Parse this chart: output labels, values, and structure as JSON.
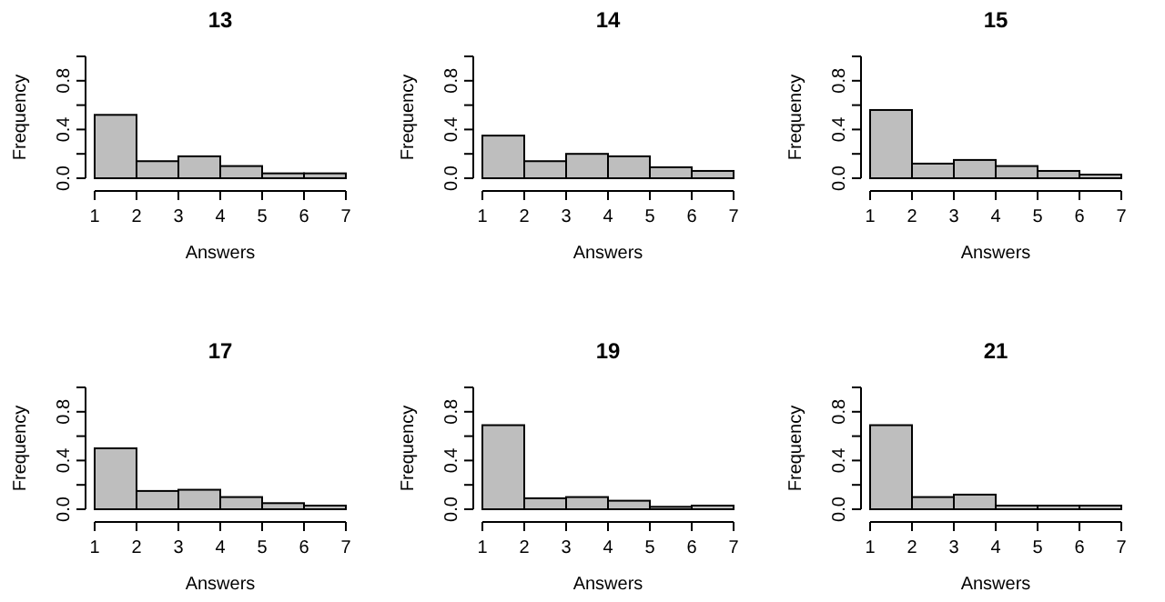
{
  "chart_data": [
    {
      "type": "histogram",
      "title": "13",
      "xlabel": "Answers",
      "ylabel": "Frequency",
      "bins": [
        1,
        2,
        3,
        4,
        5,
        6,
        7
      ],
      "values": [
        0.52,
        0.14,
        0.18,
        0.1,
        0.04,
        0.04
      ],
      "color": "#bebebe",
      "xlim": [
        1,
        7
      ],
      "xticks": [
        1,
        2,
        3,
        4,
        5,
        6,
        7
      ],
      "ylim": [
        0,
        1
      ],
      "yticks": [
        {
          "value": 0,
          "label": "0.0"
        },
        {
          "value": 0.2,
          "label": null
        },
        {
          "value": 0.4,
          "label": "0.4"
        },
        {
          "value": 0.6,
          "label": null
        },
        {
          "value": 0.8,
          "label": "0.8"
        },
        {
          "value": 1,
          "label": null
        }
      ]
    },
    {
      "type": "histogram",
      "title": "14",
      "xlabel": "Answers",
      "ylabel": "Frequency",
      "bins": [
        1,
        2,
        3,
        4,
        5,
        6,
        7
      ],
      "values": [
        0.35,
        0.14,
        0.2,
        0.18,
        0.09,
        0.06
      ],
      "color": "#bebebe",
      "xlim": [
        1,
        7
      ],
      "xticks": [
        1,
        2,
        3,
        4,
        5,
        6,
        7
      ],
      "ylim": [
        0,
        1
      ],
      "yticks": [
        {
          "value": 0,
          "label": "0.0"
        },
        {
          "value": 0.2,
          "label": null
        },
        {
          "value": 0.4,
          "label": "0.4"
        },
        {
          "value": 0.6,
          "label": null
        },
        {
          "value": 0.8,
          "label": "0.8"
        },
        {
          "value": 1,
          "label": null
        }
      ]
    },
    {
      "type": "histogram",
      "title": "15",
      "xlabel": "Answers",
      "ylabel": "Frequency",
      "bins": [
        1,
        2,
        3,
        4,
        5,
        6,
        7
      ],
      "values": [
        0.56,
        0.12,
        0.15,
        0.1,
        0.06,
        0.03
      ],
      "color": "#bebebe",
      "xlim": [
        1,
        7
      ],
      "xticks": [
        1,
        2,
        3,
        4,
        5,
        6,
        7
      ],
      "ylim": [
        0,
        1
      ],
      "yticks": [
        {
          "value": 0,
          "label": "0.0"
        },
        {
          "value": 0.2,
          "label": null
        },
        {
          "value": 0.4,
          "label": "0.4"
        },
        {
          "value": 0.6,
          "label": null
        },
        {
          "value": 0.8,
          "label": "0.8"
        },
        {
          "value": 1,
          "label": null
        }
      ]
    },
    {
      "type": "histogram",
      "title": "17",
      "xlabel": "Answers",
      "ylabel": "Frequency",
      "bins": [
        1,
        2,
        3,
        4,
        5,
        6,
        7
      ],
      "values": [
        0.5,
        0.15,
        0.16,
        0.1,
        0.05,
        0.03
      ],
      "color": "#bebebe",
      "xlim": [
        1,
        7
      ],
      "xticks": [
        1,
        2,
        3,
        4,
        5,
        6,
        7
      ],
      "ylim": [
        0,
        1
      ],
      "yticks": [
        {
          "value": 0,
          "label": "0.0"
        },
        {
          "value": 0.2,
          "label": null
        },
        {
          "value": 0.4,
          "label": "0.4"
        },
        {
          "value": 0.6,
          "label": null
        },
        {
          "value": 0.8,
          "label": "0.8"
        },
        {
          "value": 1,
          "label": null
        }
      ]
    },
    {
      "type": "histogram",
      "title": "19",
      "xlabel": "Answers",
      "ylabel": "Frequency",
      "bins": [
        1,
        2,
        3,
        4,
        5,
        6,
        7
      ],
      "values": [
        0.69,
        0.09,
        0.1,
        0.07,
        0.02,
        0.03
      ],
      "color": "#bebebe",
      "xlim": [
        1,
        7
      ],
      "xticks": [
        1,
        2,
        3,
        4,
        5,
        6,
        7
      ],
      "ylim": [
        0,
        1
      ],
      "yticks": [
        {
          "value": 0,
          "label": "0.0"
        },
        {
          "value": 0.2,
          "label": null
        },
        {
          "value": 0.4,
          "label": "0.4"
        },
        {
          "value": 0.6,
          "label": null
        },
        {
          "value": 0.8,
          "label": "0.8"
        },
        {
          "value": 1,
          "label": null
        }
      ]
    },
    {
      "type": "histogram",
      "title": "21",
      "xlabel": "Answers",
      "ylabel": "Frequency",
      "bins": [
        1,
        2,
        3,
        4,
        5,
        6,
        7
      ],
      "values": [
        0.69,
        0.1,
        0.12,
        0.03,
        0.03,
        0.03
      ],
      "color": "#bebebe",
      "xlim": [
        1,
        7
      ],
      "xticks": [
        1,
        2,
        3,
        4,
        5,
        6,
        7
      ],
      "ylim": [
        0,
        1
      ],
      "yticks": [
        {
          "value": 0,
          "label": "0.0"
        },
        {
          "value": 0.2,
          "label": null
        },
        {
          "value": 0.4,
          "label": "0.4"
        },
        {
          "value": 0.6,
          "label": null
        },
        {
          "value": 0.8,
          "label": "0.8"
        },
        {
          "value": 1,
          "label": null
        }
      ]
    }
  ]
}
